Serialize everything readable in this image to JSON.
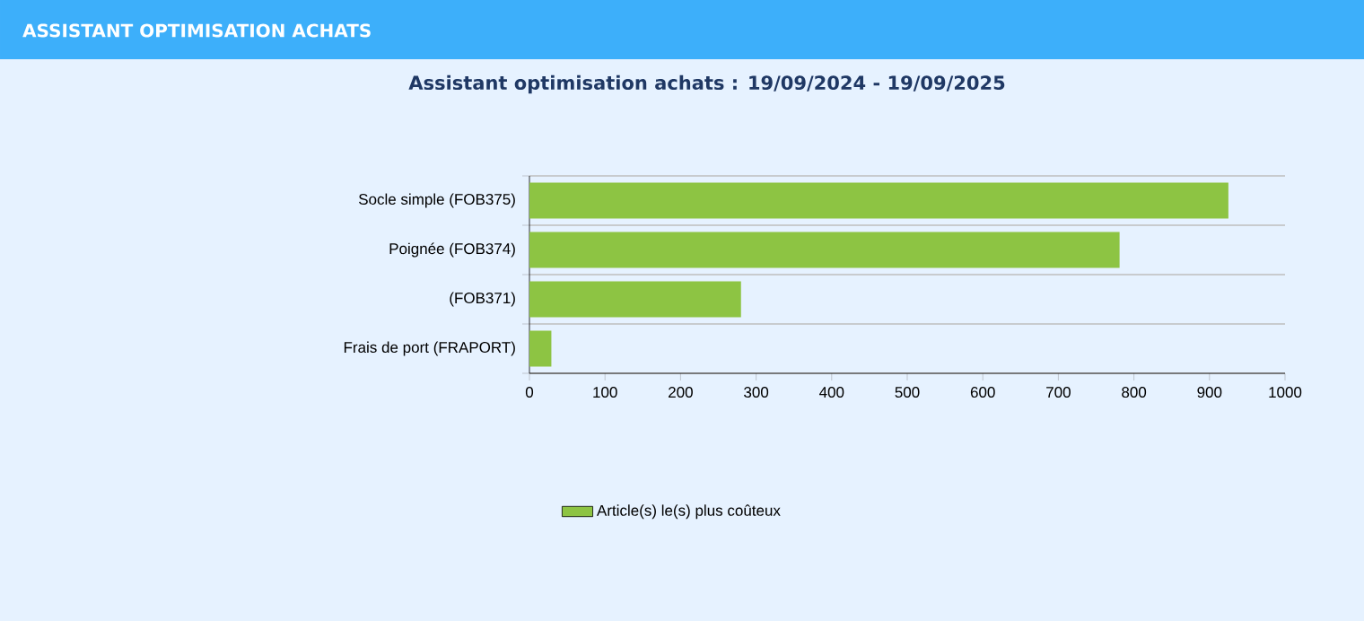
{
  "chart_data": {
    "type": "bar",
    "orientation": "horizontal",
    "title": "ASSISTANT OPTIMISATION ACHATS",
    "subtitle": "Assistant optimisation achats : 19/09/2024 - 19/09/2025",
    "categories": [
      "Socle simple (FOB375)",
      "Poignée (FOB374)",
      "(FOB371)",
      "Frais de port (FRAPORT)"
    ],
    "series": [
      {
        "name": "Article(s) le(s) plus coûteux",
        "color": "#8dc443",
        "values": [
          925,
          781,
          280,
          29
        ]
      }
    ],
    "xlim": [
      0,
      1000
    ],
    "xticks": [
      0,
      100,
      200,
      300,
      400,
      500,
      600,
      700,
      800,
      900,
      1000
    ],
    "grid": "y",
    "legend": "bottom"
  }
}
